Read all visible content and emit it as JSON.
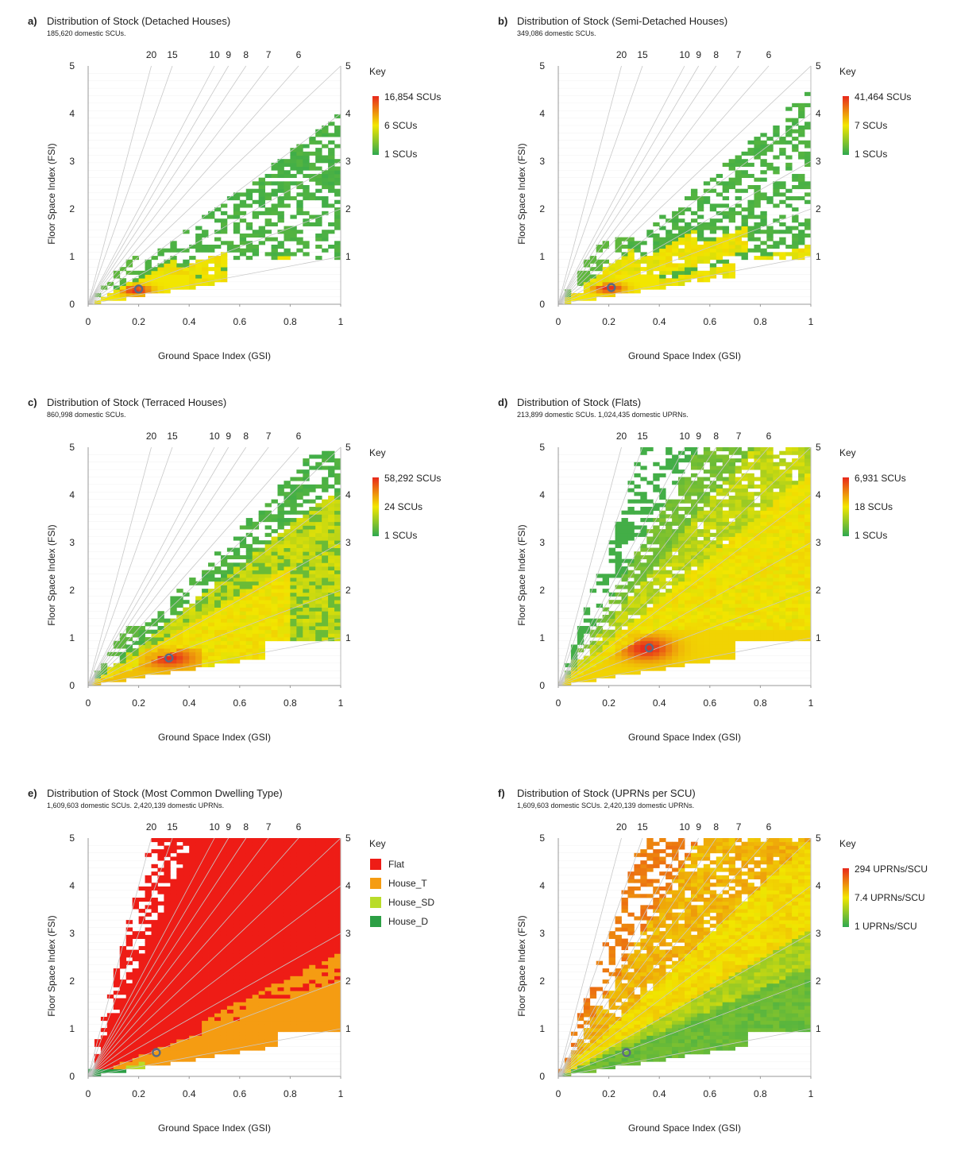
{
  "colors": {
    "scale_low": "#2fa84f",
    "scale_mid": "#f2e600",
    "scale_high": "#e8281c",
    "gridline": "#c8c8c8",
    "marker": "#596a84",
    "flat": "#ee1c16",
    "house_t": "#f59c12",
    "house_sd": "#b9dc2a",
    "house_d": "#2c9f45"
  },
  "chart_data": [
    {
      "id": "a",
      "letter": "a)",
      "type": "heatmap",
      "mode": "detached",
      "title": "Distribution of Stock (Detached Houses)",
      "subtitle": "185,620 domestic SCUs.",
      "xlabel": "Ground Space Index (GSI)",
      "ylabel": "Floor Space Index (FSI)",
      "xlim": [
        0,
        1
      ],
      "ylim": [
        0,
        5
      ],
      "x_ticks": [
        "0",
        "0.2",
        "0.4",
        "0.6",
        "0.8",
        "1"
      ],
      "y_ticks": [
        "0",
        "1",
        "2",
        "3",
        "4",
        "5"
      ],
      "ratio_lines": [
        1,
        2,
        3,
        4,
        5,
        6,
        7,
        8,
        9,
        10,
        15,
        20
      ],
      "top_labels": [
        "20",
        "15",
        "10",
        "9",
        "8",
        "7",
        "6"
      ],
      "right_labels": [
        "1",
        "2",
        "3",
        "4",
        "5"
      ],
      "legend_title": "Key",
      "legend_labels": [
        "16,854 SCUs",
        "6 SCUs",
        "1 SCUs"
      ],
      "median_marker": {
        "gsi": 0.2,
        "fsi": 0.32
      }
    },
    {
      "id": "b",
      "letter": "b)",
      "type": "heatmap",
      "mode": "semi",
      "title": "Distribution of Stock (Semi-Detached Houses)",
      "subtitle": "349,086 domestic SCUs.",
      "xlabel": "Ground Space Index (GSI)",
      "ylabel": "Floor Space Index (FSI)",
      "xlim": [
        0,
        1
      ],
      "ylim": [
        0,
        5
      ],
      "x_ticks": [
        "0",
        "0.2",
        "0.4",
        "0.6",
        "0.8",
        "1"
      ],
      "y_ticks": [
        "0",
        "1",
        "2",
        "3",
        "4",
        "5"
      ],
      "ratio_lines": [
        1,
        2,
        3,
        4,
        5,
        6,
        7,
        8,
        9,
        10,
        15,
        20
      ],
      "top_labels": [
        "20",
        "15",
        "10",
        "9",
        "8",
        "7",
        "6"
      ],
      "right_labels": [
        "1",
        "2",
        "3",
        "4",
        "5"
      ],
      "legend_title": "Key",
      "legend_labels": [
        "41,464 SCUs",
        "7 SCUs",
        "1 SCUs"
      ],
      "median_marker": {
        "gsi": 0.21,
        "fsi": 0.35
      }
    },
    {
      "id": "c",
      "letter": "c)",
      "type": "heatmap",
      "mode": "terraced",
      "title": "Distribution of Stock (Terraced Houses)",
      "subtitle": "860,998 domestic SCUs.",
      "xlabel": "Ground Space Index (GSI)",
      "ylabel": "Floor Space Index (FSI)",
      "xlim": [
        0,
        1
      ],
      "ylim": [
        0,
        5
      ],
      "x_ticks": [
        "0",
        "0.2",
        "0.4",
        "0.6",
        "0.8",
        "1"
      ],
      "y_ticks": [
        "0",
        "1",
        "2",
        "3",
        "4",
        "5"
      ],
      "ratio_lines": [
        1,
        2,
        3,
        4,
        5,
        6,
        7,
        8,
        9,
        10,
        15,
        20
      ],
      "top_labels": [
        "20",
        "15",
        "10",
        "9",
        "8",
        "7",
        "6"
      ],
      "right_labels": [
        "1",
        "2",
        "3",
        "4",
        "5"
      ],
      "legend_title": "Key",
      "legend_labels": [
        "58,292 SCUs",
        "24 SCUs",
        "1 SCUs"
      ],
      "median_marker": {
        "gsi": 0.32,
        "fsi": 0.58
      }
    },
    {
      "id": "d",
      "letter": "d)",
      "type": "heatmap",
      "mode": "flats",
      "title": "Distribution of Stock (Flats)",
      "subtitle": "213,899 domestic SCUs. 1,024,435 domestic UPRNs.",
      "xlabel": "Ground Space Index (GSI)",
      "ylabel": "Floor Space Index (FSI)",
      "xlim": [
        0,
        1
      ],
      "ylim": [
        0,
        5
      ],
      "x_ticks": [
        "0",
        "0.2",
        "0.4",
        "0.6",
        "0.8",
        "1"
      ],
      "y_ticks": [
        "0",
        "1",
        "2",
        "3",
        "4",
        "5"
      ],
      "ratio_lines": [
        1,
        2,
        3,
        4,
        5,
        6,
        7,
        8,
        9,
        10,
        15,
        20
      ],
      "top_labels": [
        "20",
        "15",
        "10",
        "9",
        "8",
        "7",
        "6"
      ],
      "right_labels": [
        "1",
        "2",
        "3",
        "4",
        "5"
      ],
      "legend_title": "Key",
      "legend_labels": [
        "6,931 SCUs",
        "18 SCUs",
        "1 SCUs"
      ],
      "median_marker": {
        "gsi": 0.36,
        "fsi": 0.79
      }
    },
    {
      "id": "e",
      "letter": "e)",
      "type": "heatmap",
      "mode": "common",
      "title": "Distribution of Stock (Most Common Dwelling Type)",
      "subtitle": "1,609,603 domestic SCUs. 2,420,139 domestic UPRNs.",
      "xlabel": "Ground Space Index (GSI)",
      "ylabel": "Floor Space Index (FSI)",
      "xlim": [
        0,
        1
      ],
      "ylim": [
        0,
        5
      ],
      "x_ticks": [
        "0",
        "0.2",
        "0.4",
        "0.6",
        "0.8",
        "1"
      ],
      "y_ticks": [
        "0",
        "1",
        "2",
        "3",
        "4",
        "5"
      ],
      "ratio_lines": [
        1,
        2,
        3,
        4,
        5,
        6,
        7,
        8,
        9,
        10,
        15,
        20
      ],
      "top_labels": [
        "20",
        "15",
        "10",
        "9",
        "8",
        "7",
        "6"
      ],
      "right_labels": [
        "1",
        "2",
        "3",
        "4",
        "5"
      ],
      "legend_title": "Key",
      "categories": [
        {
          "label": "Flat",
          "color": "#ee1c16"
        },
        {
          "label": "House_T",
          "color": "#f59c12"
        },
        {
          "label": "House_SD",
          "color": "#b9dc2a"
        },
        {
          "label": "House_D",
          "color": "#2c9f45"
        }
      ],
      "median_marker": {
        "gsi": 0.27,
        "fsi": 0.5
      }
    },
    {
      "id": "f",
      "letter": "f)",
      "type": "heatmap",
      "mode": "uprn",
      "title": "Distribution of Stock (UPRNs per SCU)",
      "subtitle": "1,609,603 domestic SCUs. 2,420,139 domestic UPRNs.",
      "xlabel": "Ground Space Index (GSI)",
      "ylabel": "Floor Space Index (FSI)",
      "xlim": [
        0,
        1
      ],
      "ylim": [
        0,
        5
      ],
      "x_ticks": [
        "0",
        "0.2",
        "0.4",
        "0.6",
        "0.8",
        "1"
      ],
      "y_ticks": [
        "0",
        "1",
        "2",
        "3",
        "4",
        "5"
      ],
      "ratio_lines": [
        1,
        2,
        3,
        4,
        5,
        6,
        7,
        8,
        9,
        10,
        15,
        20
      ],
      "top_labels": [
        "20",
        "15",
        "10",
        "9",
        "8",
        "7",
        "6"
      ],
      "right_labels": [
        "1",
        "2",
        "3",
        "4",
        "5"
      ],
      "legend_title": "Key",
      "legend_labels": [
        "294 UPRNs/SCU",
        "7.4 UPRNs/SCU",
        "1 UPRNs/SCU"
      ],
      "median_marker": {
        "gsi": 0.27,
        "fsi": 0.5
      }
    }
  ]
}
